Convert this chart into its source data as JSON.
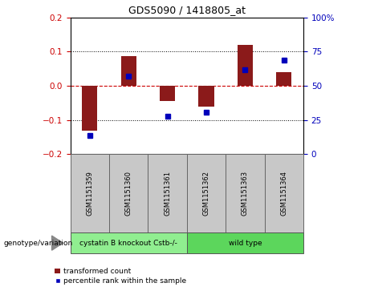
{
  "title": "GDS5090 / 1418805_at",
  "samples": [
    "GSM1151359",
    "GSM1151360",
    "GSM1151361",
    "GSM1151362",
    "GSM1151363",
    "GSM1151364"
  ],
  "bar_values": [
    -0.13,
    0.088,
    -0.045,
    -0.06,
    0.12,
    0.04
  ],
  "dot_values_pct": [
    14,
    57,
    28,
    31,
    62,
    69
  ],
  "ylim_left": [
    -0.2,
    0.2
  ],
  "ylim_right": [
    0,
    100
  ],
  "yticks_left": [
    -0.2,
    -0.1,
    0,
    0.1,
    0.2
  ],
  "yticks_right": [
    0,
    25,
    50,
    75,
    100
  ],
  "bar_color": "#8B1A1A",
  "dot_color": "#0000BB",
  "zero_line_color": "#CC0000",
  "dotted_line_color": "#000000",
  "groups": [
    {
      "label": "cystatin B knockout Cstb-/-",
      "start": 0,
      "end": 2,
      "color": "#90EE90"
    },
    {
      "label": "wild type",
      "start": 3,
      "end": 5,
      "color": "#5CD65C"
    }
  ],
  "legend_label1": "transformed count",
  "legend_label2": "percentile rank within the sample",
  "genotype_label": "genotype/variation",
  "sample_box_color": "#C8C8C8",
  "background_color": "#FFFFFF"
}
